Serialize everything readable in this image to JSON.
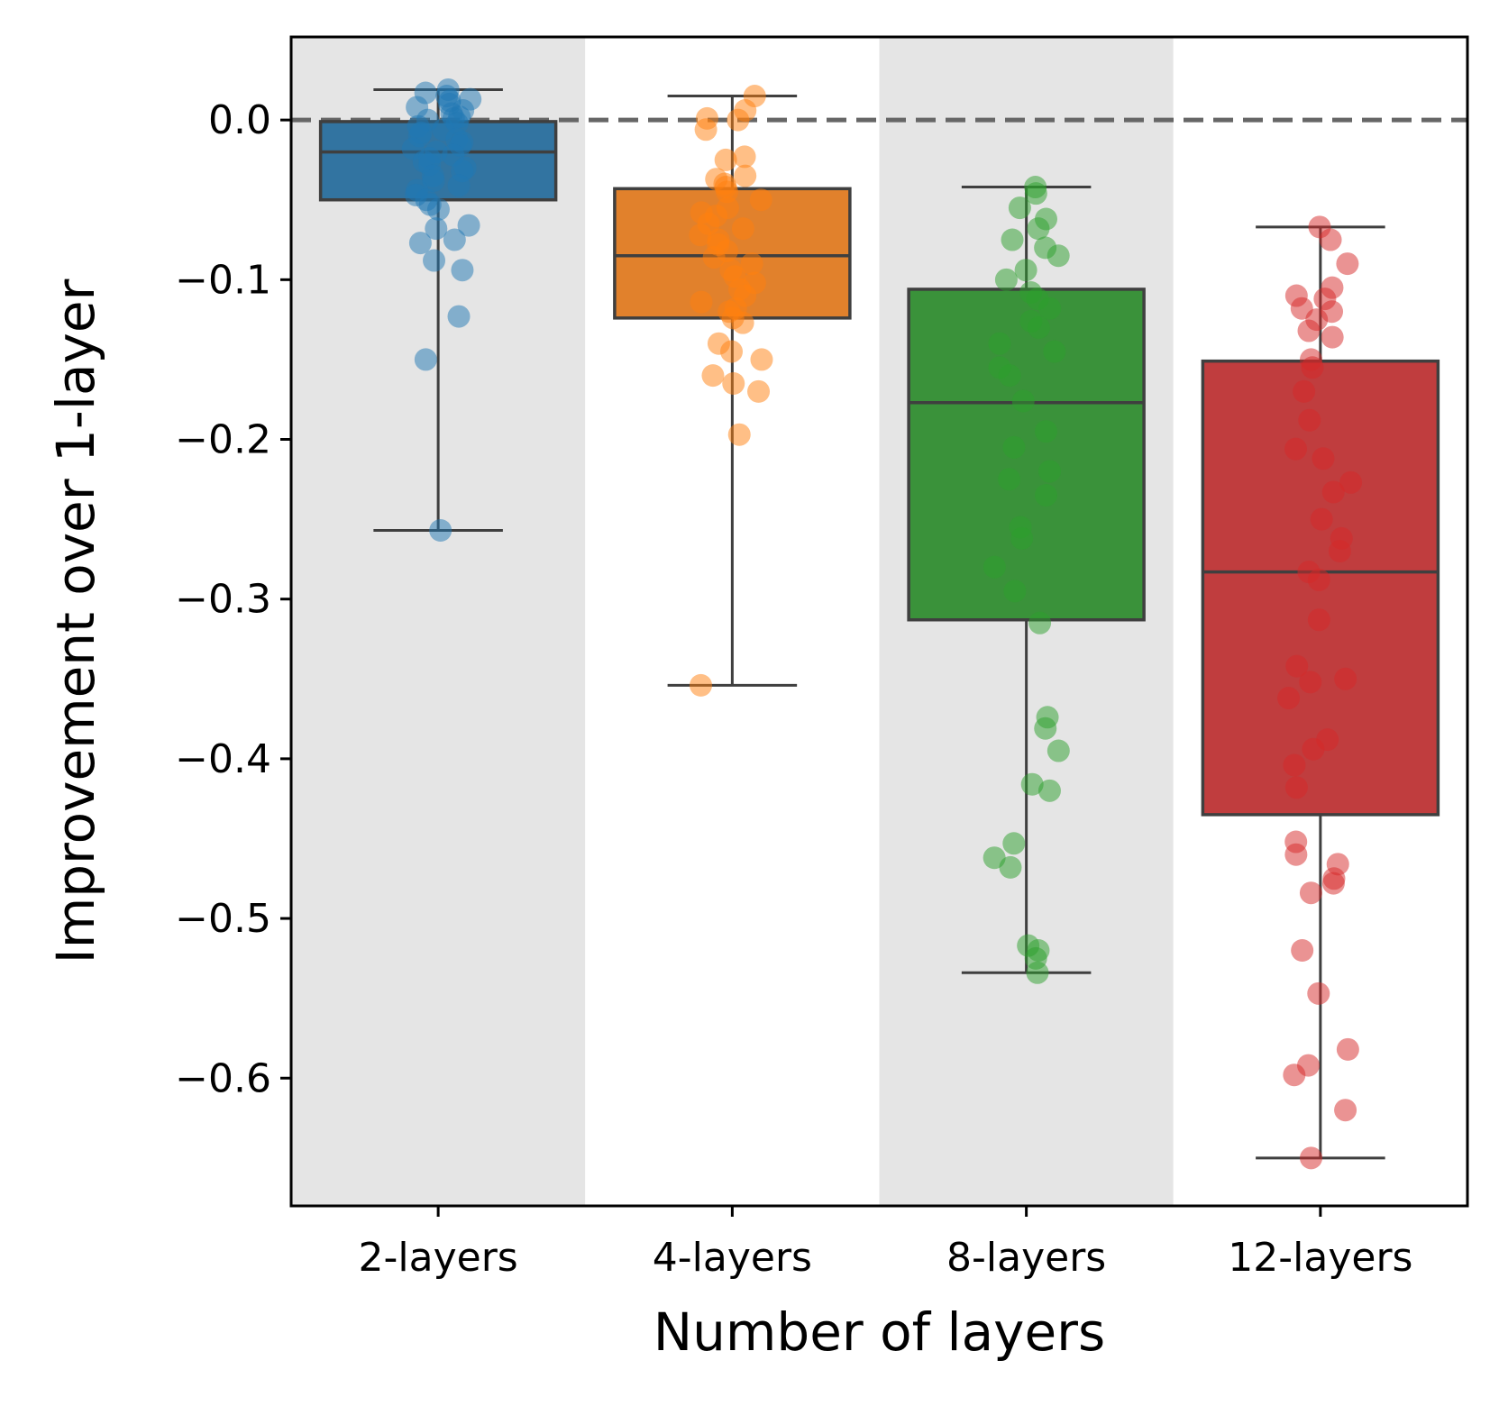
{
  "chart_data": {
    "type": "box",
    "title": "",
    "xlabel": "Number of layers",
    "ylabel": "Improvement over 1-layer",
    "ylim": [
      -0.68,
      0.052
    ],
    "yticks": [
      0.0,
      -0.1,
      -0.2,
      -0.3,
      -0.4,
      -0.5,
      -0.6
    ],
    "ytick_labels": [
      "0.0",
      "−0.1",
      "−0.2",
      "−0.3",
      "−0.4",
      "−0.5",
      "−0.6"
    ],
    "reference_line": 0.0,
    "grid": false,
    "categories": [
      "2-layers",
      "4-layers",
      "8-layers",
      "12-layers"
    ],
    "boxes": [
      {
        "name": "2-layers",
        "color": "#1f77b4",
        "box_color": "#3274a1",
        "whisker_low": -0.257,
        "q1": -0.05,
        "median": -0.02,
        "q3": -0.001,
        "whisker_high": 0.019,
        "points": [
          0.019,
          0.017,
          0.015,
          0.013,
          0.012,
          0.01,
          0.008,
          0.006,
          0.004,
          0.002,
          0.001,
          0.0,
          -0.002,
          -0.004,
          -0.006,
          -0.008,
          -0.01,
          -0.012,
          -0.014,
          -0.016,
          -0.018,
          -0.02,
          -0.022,
          -0.024,
          -0.026,
          -0.028,
          -0.03,
          -0.032,
          -0.035,
          -0.038,
          -0.041,
          -0.044,
          -0.047,
          -0.05,
          -0.053,
          -0.056,
          -0.066,
          -0.068,
          -0.075,
          -0.077,
          -0.088,
          -0.094,
          -0.123,
          -0.15,
          -0.257
        ]
      },
      {
        "name": "4-layers",
        "color": "#ff7f0e",
        "box_color": "#e1812c",
        "whisker_low": -0.354,
        "q1": -0.124,
        "median": -0.085,
        "q3": -0.043,
        "whisker_high": 0.015,
        "points": [
          0.015,
          0.006,
          0.001,
          0.0,
          -0.006,
          -0.023,
          -0.025,
          -0.035,
          -0.037,
          -0.04,
          -0.042,
          -0.045,
          -0.05,
          -0.055,
          -0.058,
          -0.06,
          -0.065,
          -0.068,
          -0.072,
          -0.075,
          -0.078,
          -0.082,
          -0.086,
          -0.09,
          -0.094,
          -0.098,
          -0.102,
          -0.106,
          -0.11,
          -0.114,
          -0.118,
          -0.12,
          -0.124,
          -0.127,
          -0.14,
          -0.145,
          -0.15,
          -0.16,
          -0.165,
          -0.17,
          -0.197,
          -0.354
        ]
      },
      {
        "name": "8-layers",
        "color": "#2ca02c",
        "box_color": "#3a923a",
        "whisker_low": -0.534,
        "q1": -0.313,
        "median": -0.177,
        "q3": -0.106,
        "whisker_high": -0.042,
        "points": [
          -0.042,
          -0.046,
          -0.055,
          -0.062,
          -0.068,
          -0.075,
          -0.08,
          -0.085,
          -0.094,
          -0.1,
          -0.108,
          -0.112,
          -0.118,
          -0.126,
          -0.13,
          -0.14,
          -0.145,
          -0.155,
          -0.16,
          -0.176,
          -0.195,
          -0.205,
          -0.22,
          -0.225,
          -0.235,
          -0.255,
          -0.262,
          -0.28,
          -0.295,
          -0.315,
          -0.374,
          -0.381,
          -0.395,
          -0.416,
          -0.42,
          -0.453,
          -0.462,
          -0.468,
          -0.517,
          -0.525,
          -0.52,
          -0.534
        ]
      },
      {
        "name": "12-layers",
        "color": "#d62728",
        "box_color": "#c03d3e",
        "whisker_low": -0.65,
        "q1": -0.435,
        "median": -0.283,
        "q3": -0.151,
        "whisker_high": -0.067,
        "points": [
          -0.067,
          -0.075,
          -0.09,
          -0.105,
          -0.11,
          -0.112,
          -0.118,
          -0.12,
          -0.125,
          -0.132,
          -0.136,
          -0.15,
          -0.155,
          -0.17,
          -0.188,
          -0.206,
          -0.212,
          -0.227,
          -0.233,
          -0.25,
          -0.262,
          -0.27,
          -0.283,
          -0.288,
          -0.313,
          -0.342,
          -0.35,
          -0.352,
          -0.362,
          -0.388,
          -0.394,
          -0.404,
          -0.418,
          -0.452,
          -0.46,
          -0.466,
          -0.475,
          -0.478,
          -0.484,
          -0.52,
          -0.547,
          -0.582,
          -0.592,
          -0.598,
          -0.62,
          -0.65
        ]
      }
    ]
  }
}
